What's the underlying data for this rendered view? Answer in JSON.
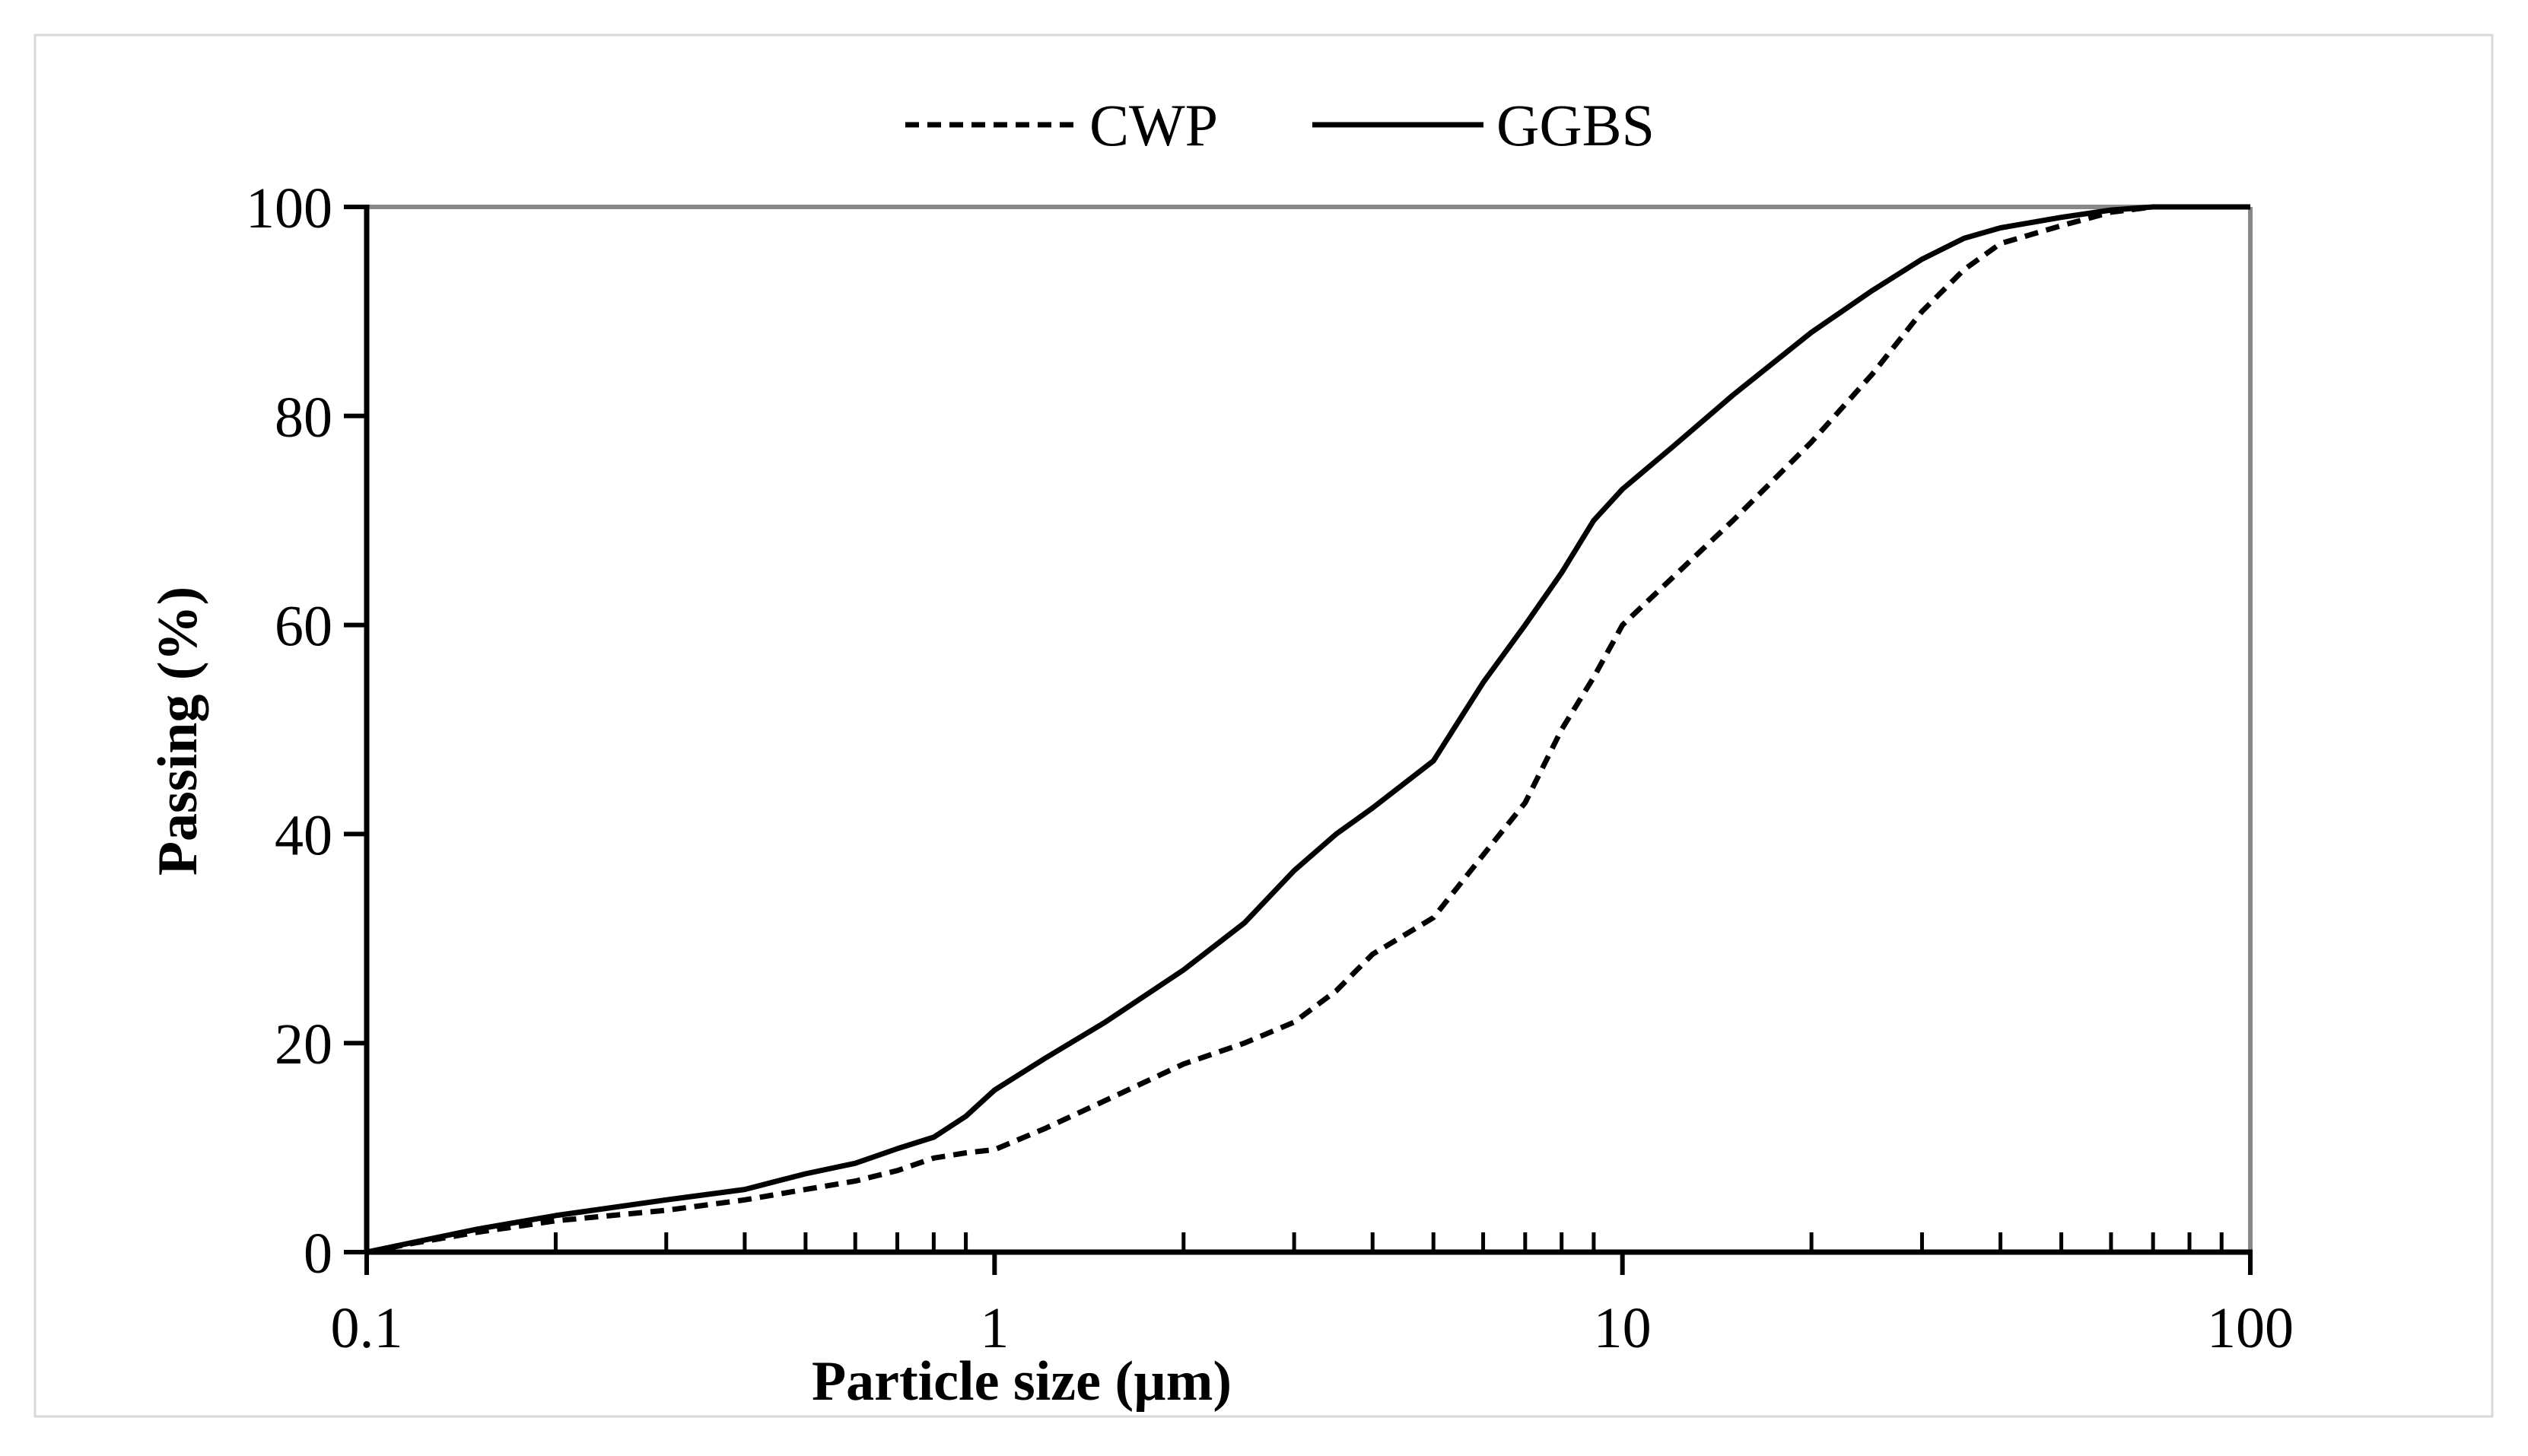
{
  "chart_data": {
    "type": "line",
    "title": "",
    "xlabel": "Particle size (µm)",
    "ylabel": "Passing  (%)",
    "x_scale": "log",
    "xlim": [
      0.1,
      100
    ],
    "ylim": [
      0,
      100
    ],
    "x_ticks": [
      0.1,
      1,
      10,
      100
    ],
    "x_tick_labels": [
      "0.1",
      "1",
      "10",
      "100"
    ],
    "y_ticks": [
      0,
      20,
      40,
      60,
      80,
      100
    ],
    "y_tick_labels": [
      "0",
      "20",
      "40",
      "60",
      "80",
      "100"
    ],
    "grid": false,
    "legend_position": "top",
    "colors": {
      "line": "#000000",
      "frame": "#888888",
      "axis": "#000000",
      "border": "#d9d9d9"
    },
    "series": [
      {
        "name": "CWP",
        "style": "dashed",
        "points": [
          [
            0.1,
            0
          ],
          [
            0.12,
            0.9
          ],
          [
            0.15,
            1.9
          ],
          [
            0.2,
            3
          ],
          [
            0.3,
            4
          ],
          [
            0.4,
            5
          ],
          [
            0.5,
            6
          ],
          [
            0.6,
            6.8
          ],
          [
            0.7,
            7.8
          ],
          [
            0.8,
            9
          ],
          [
            0.9,
            9.5
          ],
          [
            1,
            9.8
          ],
          [
            1.2,
            11.8
          ],
          [
            1.5,
            14.5
          ],
          [
            2,
            18
          ],
          [
            2.5,
            20
          ],
          [
            3,
            22
          ],
          [
            3.5,
            25
          ],
          [
            4,
            28.5
          ],
          [
            5,
            32
          ],
          [
            6,
            38
          ],
          [
            7,
            43
          ],
          [
            8,
            50
          ],
          [
            9,
            55
          ],
          [
            10,
            60
          ],
          [
            12,
            64.5
          ],
          [
            15,
            70
          ],
          [
            20,
            77.5
          ],
          [
            25,
            84
          ],
          [
            30,
            90
          ],
          [
            35,
            94
          ],
          [
            40,
            96.5
          ],
          [
            50,
            98.2
          ],
          [
            60,
            99.5
          ],
          [
            70,
            100
          ],
          [
            100,
            100
          ]
        ]
      },
      {
        "name": "GGBS",
        "style": "solid",
        "points": [
          [
            0.1,
            0
          ],
          [
            0.12,
            1
          ],
          [
            0.15,
            2.2
          ],
          [
            0.2,
            3.5
          ],
          [
            0.3,
            5
          ],
          [
            0.4,
            6
          ],
          [
            0.5,
            7.5
          ],
          [
            0.6,
            8.5
          ],
          [
            0.7,
            9.9
          ],
          [
            0.8,
            11
          ],
          [
            0.9,
            13
          ],
          [
            1,
            15.5
          ],
          [
            1.2,
            18.5
          ],
          [
            1.5,
            22
          ],
          [
            2,
            27
          ],
          [
            2.5,
            31.5
          ],
          [
            3,
            36.5
          ],
          [
            3.5,
            40
          ],
          [
            4,
            42.5
          ],
          [
            5,
            47
          ],
          [
            6,
            54.5
          ],
          [
            7,
            60
          ],
          [
            8,
            65
          ],
          [
            9,
            70
          ],
          [
            10,
            73
          ],
          [
            12,
            77
          ],
          [
            15,
            82
          ],
          [
            20,
            88
          ],
          [
            25,
            92
          ],
          [
            30,
            95
          ],
          [
            35,
            97
          ],
          [
            40,
            98
          ],
          [
            50,
            99
          ],
          [
            60,
            99.7
          ],
          [
            70,
            100
          ],
          [
            100,
            100
          ]
        ]
      }
    ]
  }
}
